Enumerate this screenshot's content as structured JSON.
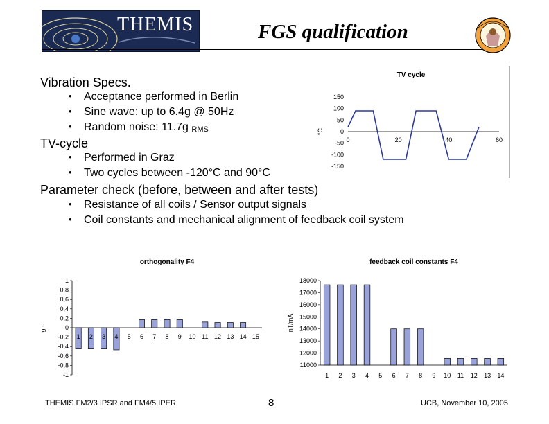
{
  "header": {
    "logo_text": "THEMIS",
    "title": "FGS qualification"
  },
  "sections": [
    {
      "heading": "Vibration Specs.",
      "bullets": [
        "Acceptance performed in Berlin",
        "Sine wave: up to 6.4g @ 50Hz",
        "Random noise: 11.7g"
      ],
      "rms_subscript": "RMS"
    },
    {
      "heading": "TV-cycle",
      "bullets": [
        "Performed in Graz",
        "Two cycles between -120°C and 90°C"
      ]
    },
    {
      "heading": "Parameter check (before, between and after tests)",
      "bullets": [
        "Resistance of all coils / Sensor output signals",
        "Coil constants and mechanical alignment of feedback coil system"
      ]
    }
  ],
  "footer": {
    "left": "THEMIS FM2/3 IPSR and FM4/5 IPER",
    "center": "8",
    "right": "UCB, November 10, 2005"
  },
  "chart_data": [
    {
      "type": "line",
      "title": "TV cycle",
      "ylabel": "°C",
      "xlim": [
        0,
        60
      ],
      "ylim": [
        -150,
        150
      ],
      "yticks": [
        150,
        100,
        50,
        0,
        -50,
        -100,
        -150
      ],
      "xticks": [
        0,
        20,
        40,
        60
      ],
      "xtick_labels": [
        "0",
        "20",
        "40",
        "60"
      ],
      "x": [
        0,
        3,
        10,
        14,
        23,
        27,
        35,
        40,
        47,
        52
      ],
      "y": [
        20,
        90,
        90,
        -120,
        -120,
        90,
        90,
        -120,
        -120,
        20
      ],
      "line_color": "#2b3a9a"
    },
    {
      "type": "bar",
      "title": "orthogonality F4",
      "ylabel": "grd",
      "ylim": [
        -1,
        1
      ],
      "yticks": [
        "1",
        "0,8",
        "0,6",
        "0,4",
        "0,2",
        "0",
        "-0,2",
        "-0,4",
        "-0,6",
        "-0,8",
        "-1"
      ],
      "categories": [
        "1",
        "2",
        "3",
        "4",
        "5",
        "6",
        "7",
        "8",
        "9",
        "10",
        "11",
        "12",
        "13",
        "14",
        "15"
      ],
      "values": [
        -0.45,
        -0.45,
        -0.45,
        -0.47,
        0,
        0.17,
        0.17,
        0.17,
        0.17,
        0,
        0.12,
        0.11,
        0.11,
        0.11,
        0
      ],
      "bar_color": "#9aa3d9"
    },
    {
      "type": "bar",
      "title": "feedback coil constants F4",
      "ylabel": "nT/mA",
      "ylim": [
        11000,
        18000
      ],
      "yticks": [
        "18000",
        "17000",
        "16000",
        "15000",
        "14000",
        "13000",
        "12000",
        "11000"
      ],
      "categories": [
        "1",
        "2",
        "3",
        "4",
        "5",
        "6",
        "7",
        "8",
        "9",
        "10",
        "11",
        "12",
        "13",
        "14"
      ],
      "values": [
        17650,
        17650,
        17650,
        17650,
        11000,
        14000,
        14000,
        14000,
        11000,
        11550,
        11550,
        11550,
        11550,
        11550
      ],
      "bar_color": "#9aa3d9"
    }
  ]
}
